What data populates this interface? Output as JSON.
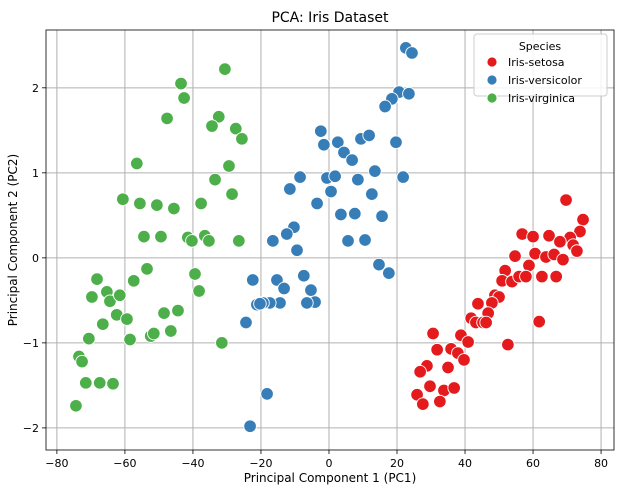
{
  "chart_data": {
    "type": "scatter",
    "title": "PCA: Iris Dataset",
    "xlabel": "Principal Component 1 (PC1)",
    "ylabel": "Principal Component 2 (PC2)",
    "xlim": [
      -83.2,
      83.8
    ],
    "ylim": [
      -2.26,
      2.68
    ],
    "xticks": [
      -80,
      -60,
      -40,
      -20,
      0,
      20,
      40,
      60,
      80
    ],
    "yticks": [
      -2,
      -1,
      0,
      1,
      2
    ],
    "grid": true,
    "legend": {
      "title": "Species",
      "placement": "top-right"
    },
    "series": [
      {
        "name": "Iris-setosa",
        "color": "#e41a1c",
        "points": [
          [
            69.7,
            0.68
          ],
          [
            74.7,
            0.45
          ],
          [
            73.8,
            0.31
          ],
          [
            56.8,
            0.28
          ],
          [
            60.0,
            0.25
          ],
          [
            64.7,
            0.26
          ],
          [
            70.9,
            0.24
          ],
          [
            67.9,
            0.19
          ],
          [
            71.8,
            0.15
          ],
          [
            72.9,
            0.08
          ],
          [
            54.7,
            0.02
          ],
          [
            60.6,
            0.05
          ],
          [
            63.8,
            0.01
          ],
          [
            66.2,
            0.04
          ],
          [
            68.8,
            -0.02
          ],
          [
            58.8,
            -0.09
          ],
          [
            51.8,
            -0.15
          ],
          [
            50.9,
            -0.27
          ],
          [
            53.8,
            -0.28
          ],
          [
            55.9,
            -0.22
          ],
          [
            57.9,
            -0.22
          ],
          [
            62.6,
            -0.22
          ],
          [
            66.8,
            -0.22
          ],
          [
            48.8,
            -0.44
          ],
          [
            50.0,
            -0.46
          ],
          [
            47.9,
            -0.53
          ],
          [
            43.8,
            -0.54
          ],
          [
            46.8,
            -0.65
          ],
          [
            41.8,
            -0.71
          ],
          [
            43.2,
            -0.76
          ],
          [
            45.3,
            -0.76
          ],
          [
            46.2,
            -0.76
          ],
          [
            61.8,
            -0.75
          ],
          [
            30.6,
            -0.89
          ],
          [
            38.8,
            -0.91
          ],
          [
            40.9,
            -0.99
          ],
          [
            52.6,
            -1.02
          ],
          [
            31.8,
            -1.08
          ],
          [
            35.9,
            -1.07
          ],
          [
            37.9,
            -1.12
          ],
          [
            39.7,
            -1.2
          ],
          [
            28.8,
            -1.27
          ],
          [
            26.8,
            -1.34
          ],
          [
            35.0,
            -1.29
          ],
          [
            29.7,
            -1.51
          ],
          [
            33.8,
            -1.56
          ],
          [
            36.8,
            -1.53
          ],
          [
            25.9,
            -1.61
          ],
          [
            27.6,
            -1.72
          ],
          [
            32.6,
            -1.69
          ]
        ]
      },
      {
        "name": "Iris-versicolor",
        "color": "#377eb8",
        "points": [
          [
            22.6,
            2.47
          ],
          [
            24.4,
            2.41
          ],
          [
            20.6,
            1.95
          ],
          [
            23.5,
            1.93
          ],
          [
            18.5,
            1.87
          ],
          [
            16.5,
            1.78
          ],
          [
            -2.4,
            1.49
          ],
          [
            -1.5,
            1.33
          ],
          [
            2.6,
            1.36
          ],
          [
            9.4,
            1.4
          ],
          [
            11.8,
            1.44
          ],
          [
            19.7,
            1.36
          ],
          [
            4.4,
            1.24
          ],
          [
            6.8,
            1.15
          ],
          [
            -8.5,
            0.95
          ],
          [
            -11.5,
            0.81
          ],
          [
            -0.6,
            0.94
          ],
          [
            1.8,
            0.96
          ],
          [
            8.5,
            0.92
          ],
          [
            13.5,
            1.02
          ],
          [
            21.8,
            0.95
          ],
          [
            0.6,
            0.78
          ],
          [
            12.6,
            0.75
          ],
          [
            -3.5,
            0.64
          ],
          [
            3.5,
            0.51
          ],
          [
            7.6,
            0.52
          ],
          [
            15.6,
            0.49
          ],
          [
            -10.3,
            0.36
          ],
          [
            -12.4,
            0.28
          ],
          [
            -16.5,
            0.2
          ],
          [
            -9.4,
            0.09
          ],
          [
            5.6,
            0.2
          ],
          [
            10.6,
            0.21
          ],
          [
            14.7,
            -0.08
          ],
          [
            17.6,
            -0.18
          ],
          [
            -22.4,
            -0.26
          ],
          [
            -15.3,
            -0.26
          ],
          [
            -13.2,
            -0.36
          ],
          [
            -7.4,
            -0.21
          ],
          [
            -5.3,
            -0.38
          ],
          [
            -4.1,
            -0.52
          ],
          [
            -6.5,
            -0.53
          ],
          [
            -14.4,
            -0.53
          ],
          [
            -17.4,
            -0.53
          ],
          [
            -19.4,
            -0.53
          ],
          [
            -21.2,
            -0.55
          ],
          [
            -20.3,
            -0.54
          ],
          [
            -24.4,
            -0.76
          ],
          [
            -18.2,
            -1.6
          ],
          [
            -23.2,
            -1.98
          ]
        ]
      },
      {
        "name": "Iris-virginica",
        "color": "#4daf4a",
        "points": [
          [
            -30.6,
            2.22
          ],
          [
            -43.5,
            2.05
          ],
          [
            -42.6,
            1.88
          ],
          [
            -47.6,
            1.64
          ],
          [
            -32.4,
            1.66
          ],
          [
            -34.4,
            1.55
          ],
          [
            -27.4,
            1.52
          ],
          [
            -25.6,
            1.4
          ],
          [
            -56.5,
            1.11
          ],
          [
            -29.4,
            1.08
          ],
          [
            -33.5,
            0.92
          ],
          [
            -28.5,
            0.75
          ],
          [
            -60.6,
            0.69
          ],
          [
            -55.6,
            0.64
          ],
          [
            -50.6,
            0.62
          ],
          [
            -45.6,
            0.58
          ],
          [
            -37.6,
            0.64
          ],
          [
            -54.4,
            0.25
          ],
          [
            -49.4,
            0.25
          ],
          [
            -41.5,
            0.24
          ],
          [
            -40.3,
            0.2
          ],
          [
            -36.5,
            0.26
          ],
          [
            -35.3,
            0.2
          ],
          [
            -26.5,
            0.2
          ],
          [
            -68.2,
            -0.25
          ],
          [
            -53.5,
            -0.13
          ],
          [
            -57.4,
            -0.27
          ],
          [
            -39.4,
            -0.19
          ],
          [
            -38.2,
            -0.39
          ],
          [
            -69.7,
            -0.46
          ],
          [
            -65.3,
            -0.4
          ],
          [
            -64.4,
            -0.51
          ],
          [
            -61.5,
            -0.44
          ],
          [
            -62.4,
            -0.67
          ],
          [
            -59.4,
            -0.72
          ],
          [
            -66.5,
            -0.78
          ],
          [
            -48.5,
            -0.65
          ],
          [
            -44.4,
            -0.62
          ],
          [
            -70.6,
            -0.95
          ],
          [
            -58.5,
            -0.96
          ],
          [
            -52.4,
            -0.92
          ],
          [
            -51.5,
            -0.89
          ],
          [
            -46.5,
            -0.86
          ],
          [
            -31.5,
            -1.0
          ],
          [
            -73.5,
            -1.16
          ],
          [
            -72.6,
            -1.22
          ],
          [
            -71.5,
            -1.47
          ],
          [
            -67.4,
            -1.47
          ],
          [
            -63.5,
            -1.48
          ],
          [
            -74.4,
            -1.74
          ]
        ]
      }
    ]
  }
}
